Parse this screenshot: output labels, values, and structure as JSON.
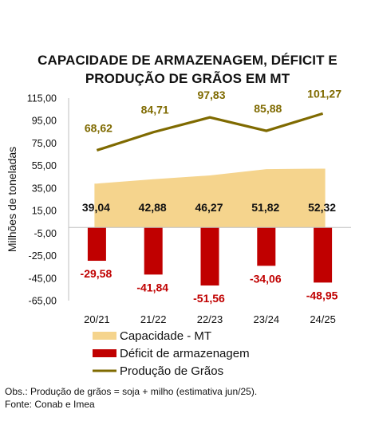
{
  "chart_data": {
    "type": "bar",
    "title_lines": [
      "CAPACIDADE DE ARMAZENAGEM, DÉFICIT E",
      "PRODUÇÃO DE GRÃOS EM MT"
    ],
    "ylabel": "Milhões de toneladas",
    "ylim": [
      -65,
      115
    ],
    "yticks": [
      115,
      95,
      75,
      55,
      35,
      15,
      -5,
      -25,
      -45,
      -65
    ],
    "ytick_labels": [
      "115,00",
      "95,00",
      "75,00",
      "55,00",
      "35,00",
      "15,00",
      "-5,00",
      "-25,00",
      "-45,00",
      "-65,00"
    ],
    "categories": [
      "20/21",
      "21/22",
      "22/23",
      "23/24",
      "24/25"
    ],
    "series": [
      {
        "name": "Capacidade - MT",
        "kind": "area",
        "color": "#f5d48d",
        "values": [
          39.04,
          42.88,
          46.27,
          51.82,
          52.32
        ],
        "labels": [
          "39,04",
          "42,88",
          "46,27",
          "51,82",
          "52,32"
        ]
      },
      {
        "name": "Déficit de armazenagem",
        "kind": "bar",
        "color": "#c00000",
        "values": [
          -29.58,
          -41.84,
          -51.56,
          -34.06,
          -48.95
        ],
        "labels": [
          "-29,58",
          "-41,84",
          "-51,56",
          "-34,06",
          "-48,95"
        ]
      },
      {
        "name": "Produção de Grãos",
        "kind": "line",
        "color": "#7f6a00",
        "values": [
          68.62,
          84.71,
          97.83,
          85.88,
          101.27
        ],
        "labels": [
          "68,62",
          "84,71",
          "97,83",
          "85,88",
          "101,27"
        ]
      }
    ],
    "legend_position": "bottom-left",
    "grid": false
  },
  "notes": [
    "Obs.: Produção de grãos = soja + milho (estimativa jun/25).",
    "Fonte: Conab e Imea"
  ]
}
